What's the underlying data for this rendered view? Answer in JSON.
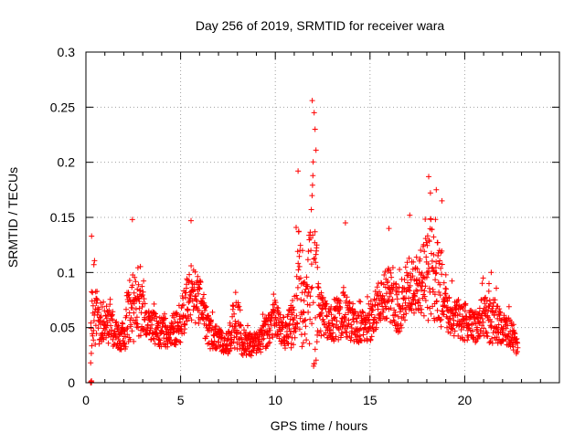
{
  "chart_data": {
    "type": "scatter",
    "title": "Day 256 of 2019, SRMTID for receiver wara",
    "xlabel": "GPS time / hours",
    "ylabel": "SRMTID / TECUs",
    "xlim": [
      0,
      25
    ],
    "ylim": [
      0,
      0.3
    ],
    "x_ticks": [
      0,
      5,
      10,
      15,
      20
    ],
    "x_tick_labels": [
      "0",
      "5",
      "10",
      "15",
      "20"
    ],
    "y_ticks": [
      0,
      0.05,
      0.1,
      0.15,
      0.2,
      0.25,
      0.3
    ],
    "y_tick_labels": [
      "0",
      "0.05",
      "0.1",
      "0.15",
      "0.2",
      "0.25",
      "0.3"
    ],
    "grid": true,
    "legend": "none",
    "series_color": "#ff0000",
    "marker": "plus",
    "x_range_of_points": [
      0.2,
      22.8
    ],
    "envelope": [
      {
        "t": 0.2,
        "base": 0.0,
        "spread": 0.0
      },
      {
        "t": 0.3,
        "base": 0.06,
        "spread": 0.05
      },
      {
        "t": 0.5,
        "base": 0.05,
        "spread": 0.04
      },
      {
        "t": 1.0,
        "base": 0.055,
        "spread": 0.025
      },
      {
        "t": 1.5,
        "base": 0.045,
        "spread": 0.02
      },
      {
        "t": 2.0,
        "base": 0.04,
        "spread": 0.015
      },
      {
        "t": 2.4,
        "base": 0.07,
        "spread": 0.05
      },
      {
        "t": 2.8,
        "base": 0.065,
        "spread": 0.04
      },
      {
        "t": 3.2,
        "base": 0.055,
        "spread": 0.02
      },
      {
        "t": 4.0,
        "base": 0.045,
        "spread": 0.02
      },
      {
        "t": 4.5,
        "base": 0.045,
        "spread": 0.02
      },
      {
        "t": 5.0,
        "base": 0.055,
        "spread": 0.03
      },
      {
        "t": 5.5,
        "base": 0.08,
        "spread": 0.04
      },
      {
        "t": 6.0,
        "base": 0.075,
        "spread": 0.03
      },
      {
        "t": 6.5,
        "base": 0.045,
        "spread": 0.02
      },
      {
        "t": 7.0,
        "base": 0.04,
        "spread": 0.015
      },
      {
        "t": 7.5,
        "base": 0.035,
        "spread": 0.015
      },
      {
        "t": 7.9,
        "base": 0.06,
        "spread": 0.04
      },
      {
        "t": 8.3,
        "base": 0.035,
        "spread": 0.015
      },
      {
        "t": 9.0,
        "base": 0.035,
        "spread": 0.015
      },
      {
        "t": 9.5,
        "base": 0.045,
        "spread": 0.02
      },
      {
        "t": 10.0,
        "base": 0.06,
        "spread": 0.025
      },
      {
        "t": 10.5,
        "base": 0.04,
        "spread": 0.015
      },
      {
        "t": 11.0,
        "base": 0.06,
        "spread": 0.04
      },
      {
        "t": 11.3,
        "base": 0.09,
        "spread": 0.09
      },
      {
        "t": 11.6,
        "base": 0.06,
        "spread": 0.03
      },
      {
        "t": 12.0,
        "base": 0.1,
        "spread": 0.15
      },
      {
        "t": 12.3,
        "base": 0.06,
        "spread": 0.03
      },
      {
        "t": 13.0,
        "base": 0.055,
        "spread": 0.025
      },
      {
        "t": 13.7,
        "base": 0.065,
        "spread": 0.035
      },
      {
        "t": 14.3,
        "base": 0.05,
        "spread": 0.02
      },
      {
        "t": 15.0,
        "base": 0.055,
        "spread": 0.025
      },
      {
        "t": 15.5,
        "base": 0.075,
        "spread": 0.03
      },
      {
        "t": 16.0,
        "base": 0.08,
        "spread": 0.035
      },
      {
        "t": 16.5,
        "base": 0.065,
        "spread": 0.03
      },
      {
        "t": 17.0,
        "base": 0.085,
        "spread": 0.04
      },
      {
        "t": 17.5,
        "base": 0.09,
        "spread": 0.035
      },
      {
        "t": 18.2,
        "base": 0.1,
        "spread": 0.07
      },
      {
        "t": 18.8,
        "base": 0.085,
        "spread": 0.05
      },
      {
        "t": 19.2,
        "base": 0.06,
        "spread": 0.025
      },
      {
        "t": 20.0,
        "base": 0.055,
        "spread": 0.025
      },
      {
        "t": 20.5,
        "base": 0.05,
        "spread": 0.02
      },
      {
        "t": 21.0,
        "base": 0.06,
        "spread": 0.03
      },
      {
        "t": 21.5,
        "base": 0.055,
        "spread": 0.03
      },
      {
        "t": 22.0,
        "base": 0.05,
        "spread": 0.02
      },
      {
        "t": 22.5,
        "base": 0.045,
        "spread": 0.02
      },
      {
        "t": 22.8,
        "base": 0.03,
        "spread": 0.01
      }
    ],
    "notable_points": [
      {
        "x": 0.25,
        "y": 0.0
      },
      {
        "x": 0.3,
        "y": 0.133
      },
      {
        "x": 2.45,
        "y": 0.148
      },
      {
        "x": 5.55,
        "y": 0.147
      },
      {
        "x": 11.2,
        "y": 0.192
      },
      {
        "x": 11.95,
        "y": 0.256
      },
      {
        "x": 12.05,
        "y": 0.245
      },
      {
        "x": 12.1,
        "y": 0.23
      },
      {
        "x": 12.15,
        "y": 0.211
      },
      {
        "x": 13.7,
        "y": 0.145
      },
      {
        "x": 16.0,
        "y": 0.14
      },
      {
        "x": 17.1,
        "y": 0.152
      },
      {
        "x": 18.1,
        "y": 0.187
      },
      {
        "x": 18.5,
        "y": 0.175
      },
      {
        "x": 18.8,
        "y": 0.165
      },
      {
        "x": 21.4,
        "y": 0.1
      }
    ]
  }
}
